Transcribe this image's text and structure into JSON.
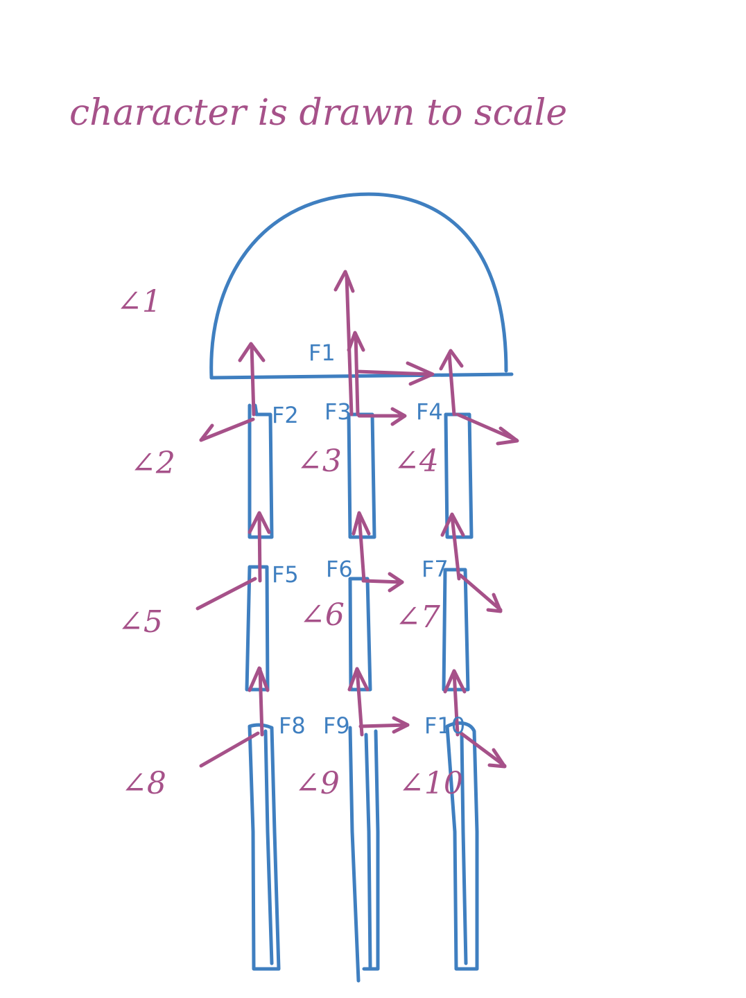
{
  "title": "character is drawn to scale",
  "angles": [
    "∠1",
    "∠2",
    "∠3",
    "∠4",
    "∠5",
    "∠6",
    "∠7",
    "∠8",
    "∠9",
    "∠10"
  ],
  "forces": [
    "F1",
    "F2",
    "F3",
    "F4",
    "F5",
    "F6",
    "F7",
    "F8",
    "F9",
    "F10"
  ],
  "colors": {
    "structure": "#3f7fc0",
    "annotation": "#a65189"
  }
}
